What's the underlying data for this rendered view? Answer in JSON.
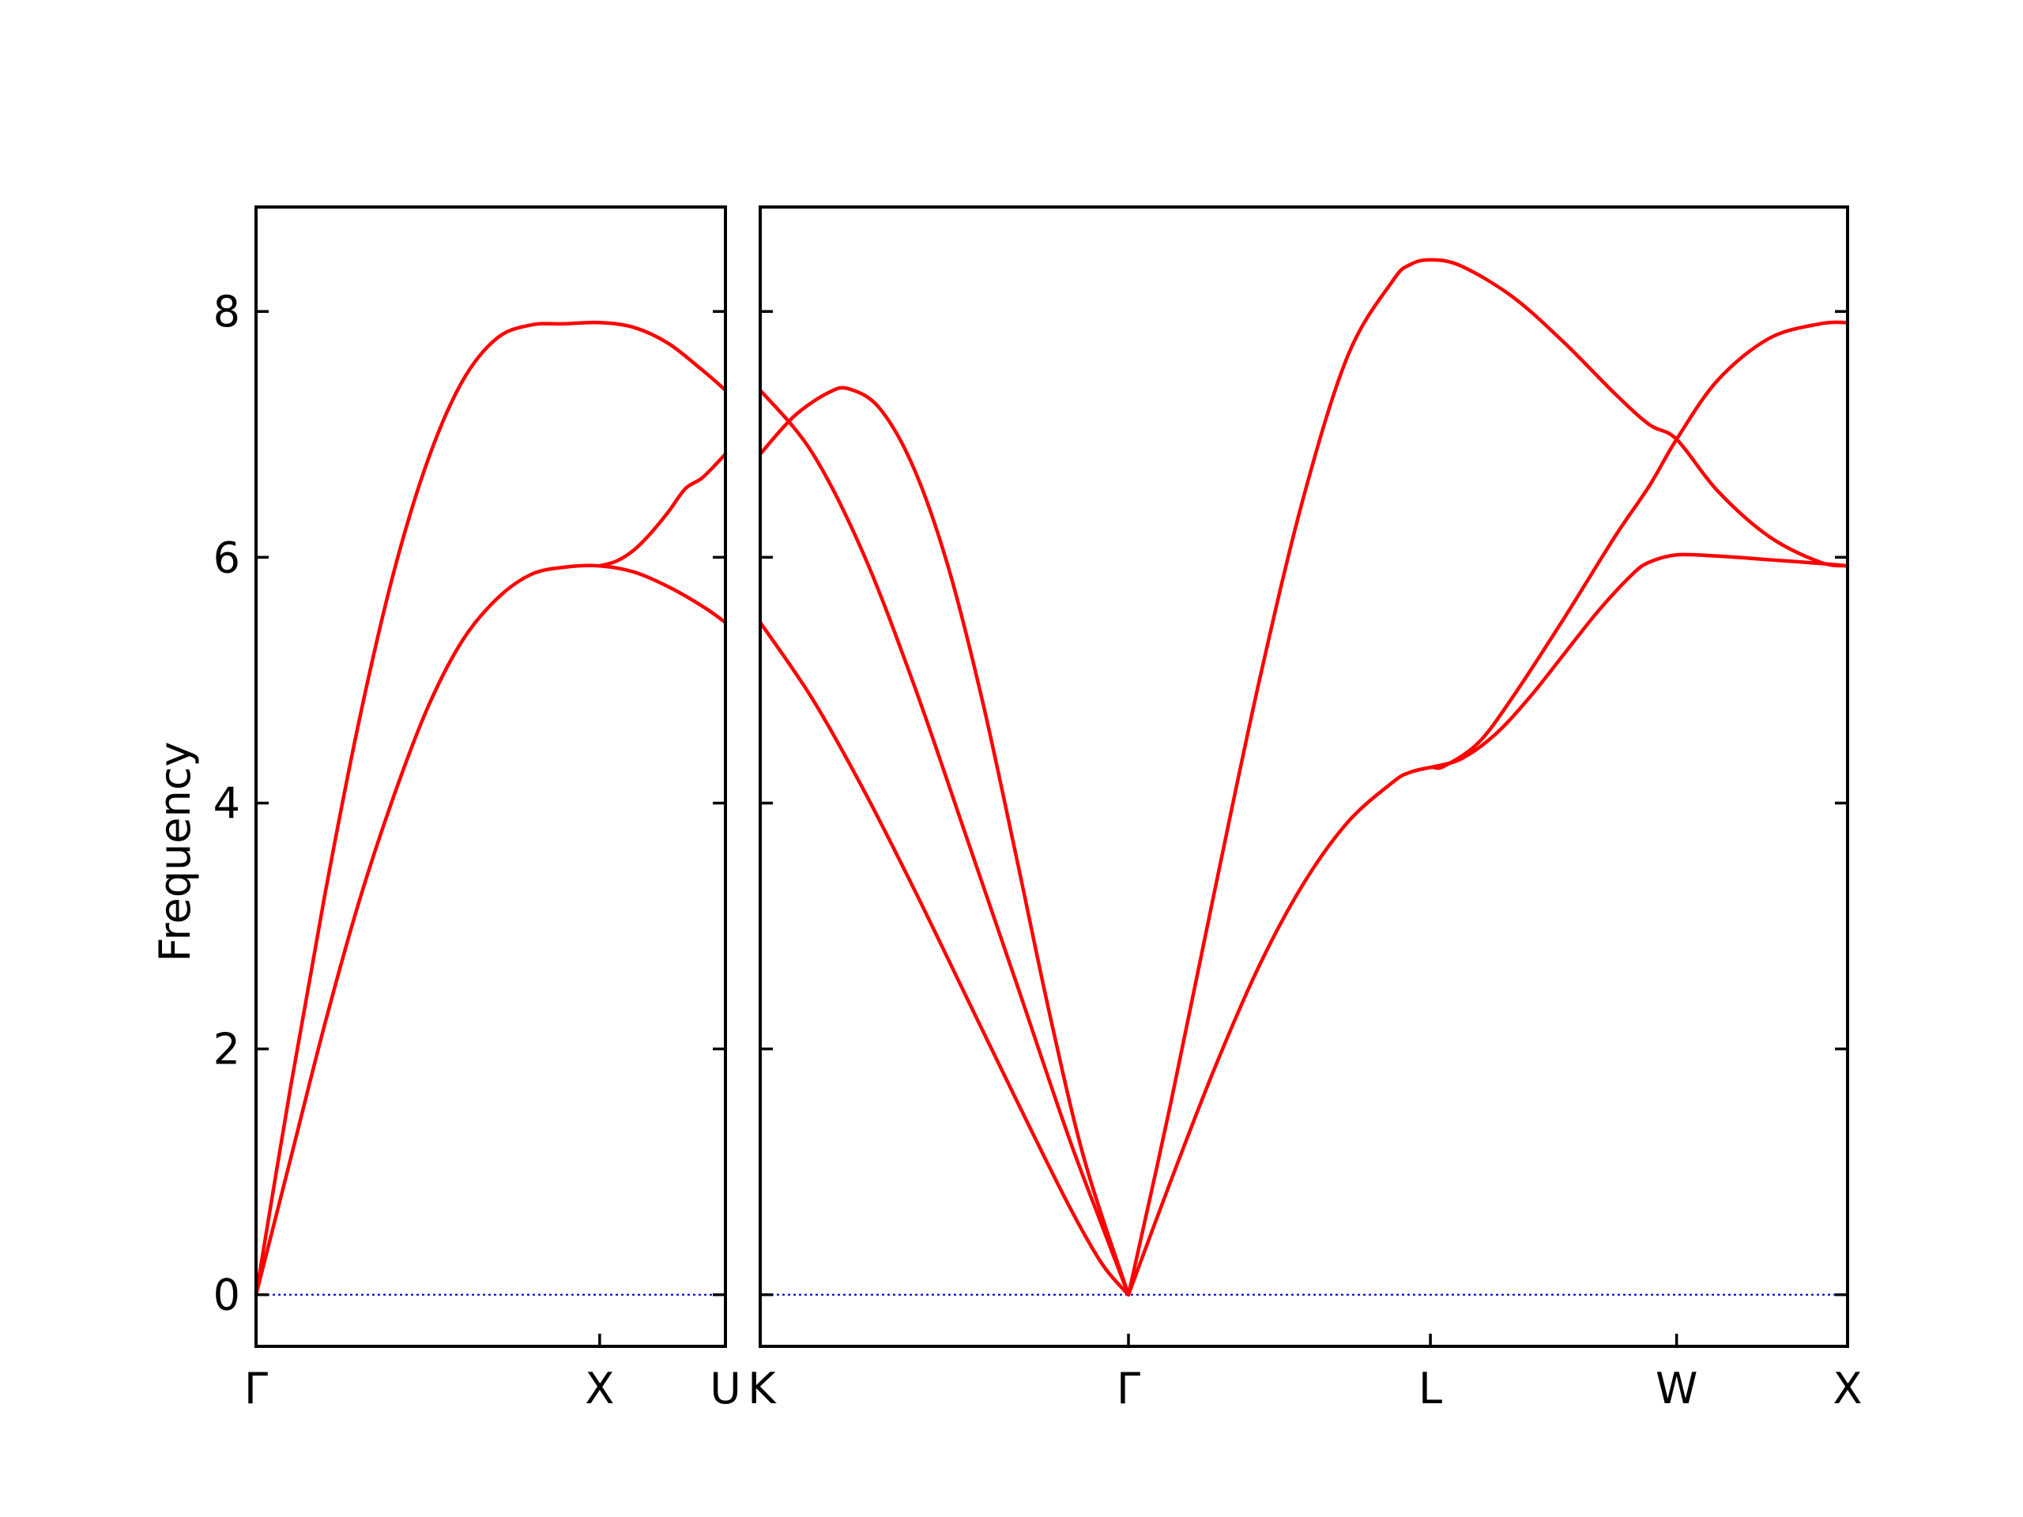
{
  "chart_data": {
    "type": "line",
    "ylabel": "Frequency",
    "ylim": [
      -0.42,
      8.85
    ],
    "yticks": [
      0,
      2,
      4,
      6,
      8
    ],
    "colors": {
      "bands": "#ff0000",
      "zero_line": "#0000cc",
      "axes": "#000000"
    },
    "panels": [
      {
        "xlim": [
          0,
          1.366
        ],
        "xticks": [
          {
            "x": 0,
            "label": "Γ"
          },
          {
            "x": 1.0,
            "label": "X"
          },
          {
            "x": 1.366,
            "label": "U"
          }
        ],
        "series": [
          {
            "x": [
              0,
              0.1,
              0.2,
              0.3,
              0.4,
              0.5,
              0.6,
              0.7,
              0.8,
              0.9,
              1.0,
              1.1,
              1.2,
              1.3,
              1.366
            ],
            "y": [
              0,
              1.68,
              3.25,
              4.67,
              5.87,
              6.79,
              7.43,
              7.78,
              7.89,
              7.9,
              7.91,
              7.87,
              7.74,
              7.52,
              7.36
            ]
          },
          {
            "x": [
              0,
              0.1,
              0.2,
              0.3,
              0.4,
              0.5,
              0.6,
              0.7,
              0.8,
              0.9,
              1.0,
              1.1,
              1.2,
              1.3,
              1.366
            ],
            "y": [
              0,
              1.1,
              2.2,
              3.2,
              4.05,
              4.78,
              5.32,
              5.66,
              5.86,
              5.92,
              5.93,
              5.88,
              5.76,
              5.6,
              5.47
            ]
          },
          {
            "x": [
              1.0,
              1.05,
              1.1,
              1.15,
              1.2,
              1.25,
              1.3,
              1.366
            ],
            "y": [
              5.93,
              5.97,
              6.06,
              6.2,
              6.37,
              6.56,
              6.65,
              6.84
            ]
          }
        ]
      },
      {
        "xlim": [
          0,
          3.18
        ],
        "xticks": [
          {
            "x": 0,
            "label": "K"
          },
          {
            "x": 1.077,
            "label": "Γ"
          },
          {
            "x": 1.96,
            "label": "L"
          },
          {
            "x": 2.68,
            "label": "W"
          },
          {
            "x": 3.18,
            "label": "X"
          }
        ],
        "series": [
          {
            "x": [
              0,
              0.1,
              0.2,
              0.26,
              0.35,
              0.45,
              0.55,
              0.65,
              0.75,
              0.85,
              0.95,
              1.077
            ],
            "y": [
              6.84,
              7.15,
              7.34,
              7.37,
              7.21,
              6.72,
              5.92,
              4.83,
              3.55,
              2.24,
              1.08,
              0
            ]
          },
          {
            "x": [
              0,
              0.15,
              0.3,
              0.45,
              0.6,
              0.75,
              0.9,
              1.0,
              1.077
            ],
            "y": [
              7.36,
              6.86,
              6.04,
              4.96,
              3.75,
              2.53,
              1.3,
              0.56,
              0
            ]
          },
          {
            "x": [
              0,
              0.15,
              0.3,
              0.45,
              0.6,
              0.75,
              0.9,
              1.0,
              1.077
            ],
            "y": [
              5.47,
              4.86,
              4.12,
              3.3,
              2.44,
              1.58,
              0.74,
              0.25,
              0
            ]
          },
          {
            "x": [
              1.077,
              1.2,
              1.33,
              1.46,
              1.59,
              1.72,
              1.85,
              1.9,
              1.96,
              2.05,
              2.2,
              2.35,
              2.5,
              2.6,
              2.68,
              2.8,
              2.95,
              3.1,
              3.18
            ],
            "y": [
              0,
              1.55,
              3.3,
              5.0,
              6.5,
              7.65,
              8.25,
              8.38,
              8.42,
              8.37,
              8.12,
              7.75,
              7.33,
              7.08,
              6.96,
              6.54,
              6.17,
              5.96,
              5.93
            ]
          },
          {
            "x": [
              1.077,
              1.2,
              1.33,
              1.46,
              1.59,
              1.72,
              1.85,
              1.9,
              1.96,
              2.0,
              2.1,
              2.2,
              2.35,
              2.5,
              2.6,
              2.68,
              2.8,
              2.95,
              3.1,
              3.18
            ],
            "y": [
              0,
              0.92,
              1.85,
              2.68,
              3.35,
              3.85,
              4.17,
              4.25,
              4.29,
              4.3,
              4.49,
              4.86,
              5.5,
              6.17,
              6.58,
              6.96,
              7.44,
              7.78,
              7.9,
              7.91
            ]
          },
          {
            "x": [
              1.96,
              2.05,
              2.15,
              2.25,
              2.35,
              2.45,
              2.55,
              2.6,
              2.68,
              2.8,
              2.95,
              3.1,
              3.18
            ],
            "y": [
              4.29,
              4.36,
              4.56,
              4.86,
              5.21,
              5.56,
              5.86,
              5.96,
              6.02,
              6.01,
              5.98,
              5.95,
              5.93
            ]
          }
        ]
      }
    ]
  }
}
